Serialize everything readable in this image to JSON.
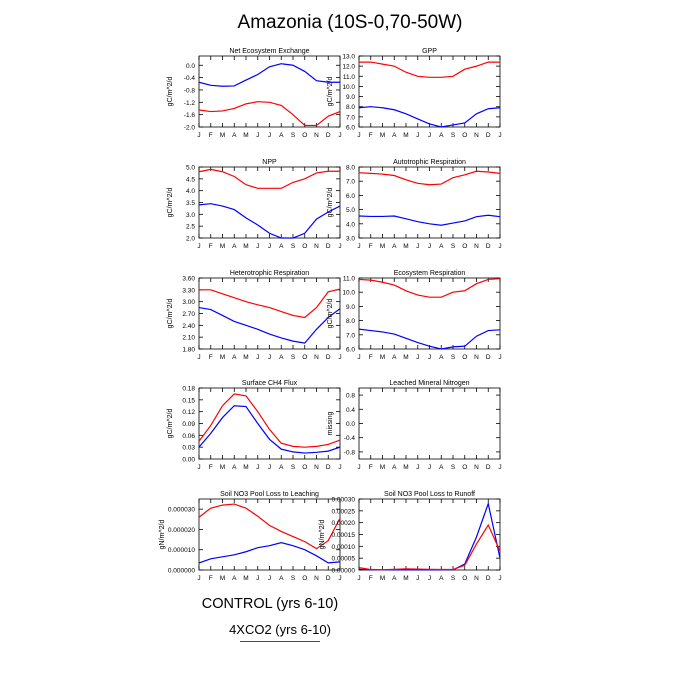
{
  "title": "Amazonia (10S-0,70-50W)",
  "legend": {
    "control_label": "CONTROL (yrs 6-10)",
    "co2_label": "4XCO2 (yrs 6-10)",
    "control_color": "#0000ff",
    "co2_color": "#ff0000"
  },
  "months": [
    "J",
    "F",
    "M",
    "A",
    "M",
    "J",
    "J",
    "A",
    "S",
    "O",
    "N",
    "D",
    "J"
  ],
  "chart_data": [
    {
      "type": "line",
      "title": "Net Ecosystem Exchange",
      "ylabel": "gC/m^2/d",
      "ylim": [
        -2.0,
        0.3
      ],
      "yticks": [
        "0.0",
        "-0.4",
        "-0.8",
        "-1.2",
        "-1.6",
        "-2.0"
      ],
      "ytick_values": [
        0.0,
        -0.4,
        -0.8,
        -1.2,
        -1.6,
        -2.0
      ],
      "series": [
        {
          "name": "CONTROL (yrs 6-10)",
          "color": "#0000ff",
          "values": [
            -0.55,
            -0.65,
            -0.68,
            -0.67,
            -0.48,
            -0.3,
            -0.05,
            0.05,
            0.0,
            -0.2,
            -0.5,
            -0.55,
            -0.55
          ]
        },
        {
          "name": "4XCO2 (yrs 6-10)",
          "color": "#ff0000",
          "values": [
            -1.45,
            -1.5,
            -1.48,
            -1.4,
            -1.25,
            -1.18,
            -1.2,
            -1.3,
            -1.6,
            -1.95,
            -1.95,
            -1.65,
            -1.5
          ]
        }
      ]
    },
    {
      "type": "line",
      "title": "GPP",
      "ylabel": "gC/m^2/d",
      "ylim": [
        6.0,
        13.0
      ],
      "yticks": [
        "13.0",
        "12.0",
        "11.0",
        "10.0",
        "9.0",
        "8.0",
        "7.0",
        "6.0"
      ],
      "ytick_values": [
        13.0,
        12.0,
        11.0,
        10.0,
        9.0,
        8.0,
        7.0,
        6.0
      ],
      "series": [
        {
          "name": "CONTROL (yrs 6-10)",
          "color": "#0000ff",
          "values": [
            7.9,
            8.0,
            7.9,
            7.7,
            7.3,
            6.8,
            6.3,
            6.0,
            6.2,
            6.4,
            7.3,
            7.8,
            7.9
          ]
        },
        {
          "name": "4XCO2 (yrs 6-10)",
          "color": "#ff0000",
          "values": [
            12.4,
            12.4,
            12.2,
            12.0,
            11.4,
            11.0,
            10.9,
            10.9,
            11.0,
            11.7,
            12.0,
            12.4,
            12.4
          ]
        }
      ]
    },
    {
      "type": "line",
      "title": "NPP",
      "ylabel": "gC/m^2/d",
      "ylim": [
        2.0,
        5.0
      ],
      "yticks": [
        "5.0",
        "4.5",
        "4.0",
        "3.5",
        "3.0",
        "2.5",
        "2.0"
      ],
      "ytick_values": [
        5.0,
        4.5,
        4.0,
        3.5,
        3.0,
        2.5,
        2.0
      ],
      "series": [
        {
          "name": "CONTROL (yrs 6-10)",
          "color": "#0000ff",
          "values": [
            3.4,
            3.45,
            3.35,
            3.2,
            2.85,
            2.55,
            2.2,
            2.0,
            2.0,
            2.2,
            2.8,
            3.1,
            3.35
          ]
        },
        {
          "name": "4XCO2 (yrs 6-10)",
          "color": "#ff0000",
          "values": [
            4.8,
            4.9,
            4.8,
            4.6,
            4.25,
            4.1,
            4.1,
            4.1,
            4.35,
            4.5,
            4.75,
            4.82,
            4.82
          ]
        }
      ]
    },
    {
      "type": "line",
      "title": "Autotrophic Respiration",
      "ylabel": "gC/m^2/d",
      "ylim": [
        3.0,
        8.0
      ],
      "yticks": [
        "8.0",
        "7.0",
        "6.0",
        "5.0",
        "4.0",
        "3.0"
      ],
      "ytick_values": [
        8.0,
        7.0,
        6.0,
        5.0,
        4.0,
        3.0
      ],
      "series": [
        {
          "name": "CONTROL (yrs 6-10)",
          "color": "#0000ff",
          "values": [
            4.55,
            4.52,
            4.52,
            4.55,
            4.35,
            4.15,
            4.0,
            3.9,
            4.05,
            4.2,
            4.5,
            4.6,
            4.5
          ]
        },
        {
          "name": "4XCO2 (yrs 6-10)",
          "color": "#ff0000",
          "values": [
            7.6,
            7.55,
            7.5,
            7.4,
            7.1,
            6.85,
            6.75,
            6.8,
            7.25,
            7.45,
            7.7,
            7.65,
            7.55
          ]
        }
      ]
    },
    {
      "type": "line",
      "title": "Heterotrophic Respiration",
      "ylabel": "gC/m^2/d",
      "ylim": [
        1.8,
        3.6
      ],
      "yticks": [
        "3.60",
        "3.30",
        "3.00",
        "2.70",
        "2.40",
        "2.10",
        "1.80"
      ],
      "ytick_values": [
        3.6,
        3.3,
        3.0,
        2.7,
        2.4,
        2.1,
        1.8
      ],
      "series": [
        {
          "name": "CONTROL (yrs 6-10)",
          "color": "#0000ff",
          "values": [
            2.85,
            2.8,
            2.65,
            2.5,
            2.4,
            2.3,
            2.18,
            2.08,
            2.0,
            1.95,
            2.3,
            2.6,
            2.82
          ]
        },
        {
          "name": "4XCO2 (yrs 6-10)",
          "color": "#ff0000",
          "values": [
            3.3,
            3.3,
            3.2,
            3.1,
            3.0,
            2.92,
            2.85,
            2.75,
            2.65,
            2.6,
            2.85,
            3.25,
            3.32
          ]
        }
      ]
    },
    {
      "type": "line",
      "title": "Ecosystem Respiration",
      "ylabel": "gC/m^2/d",
      "ylim": [
        6.0,
        11.0
      ],
      "yticks": [
        "11.0",
        "10.0",
        "9.0",
        "8.0",
        "7.0",
        "6.0"
      ],
      "ytick_values": [
        11.0,
        10.0,
        9.0,
        8.0,
        7.0,
        6.0
      ],
      "series": [
        {
          "name": "CONTROL (yrs 6-10)",
          "color": "#0000ff",
          "values": [
            7.4,
            7.3,
            7.2,
            7.05,
            6.75,
            6.45,
            6.2,
            6.0,
            6.15,
            6.2,
            6.9,
            7.3,
            7.35
          ]
        },
        {
          "name": "4XCO2 (yrs 6-10)",
          "color": "#ff0000",
          "values": [
            10.9,
            10.85,
            10.7,
            10.5,
            10.1,
            9.8,
            9.65,
            9.65,
            10.0,
            10.1,
            10.6,
            10.9,
            10.95
          ]
        }
      ]
    },
    {
      "type": "line",
      "title": "Surface CH4 Flux",
      "ylabel": "gC/m^2/d",
      "ylim": [
        0.0,
        0.18
      ],
      "yticks": [
        "0.18",
        "0.15",
        "0.12",
        "0.09",
        "0.06",
        "0.03",
        "0.00"
      ],
      "ytick_values": [
        0.18,
        0.15,
        0.12,
        0.09,
        0.06,
        0.03,
        0.0
      ],
      "series": [
        {
          "name": "CONTROL (yrs 6-10)",
          "color": "#0000ff",
          "values": [
            0.03,
            0.065,
            0.105,
            0.135,
            0.133,
            0.09,
            0.05,
            0.025,
            0.018,
            0.015,
            0.017,
            0.02,
            0.03
          ]
        },
        {
          "name": "4XCO2 (yrs 6-10)",
          "color": "#ff0000",
          "values": [
            0.045,
            0.085,
            0.135,
            0.165,
            0.16,
            0.12,
            0.075,
            0.04,
            0.032,
            0.03,
            0.032,
            0.037,
            0.048
          ]
        }
      ]
    },
    {
      "type": "line",
      "title": "Leached Mineral Nitrogen",
      "ylabel": "missing",
      "ylim": [
        -1.0,
        1.0
      ],
      "yticks": [
        "0.8",
        "0.4",
        "0.0",
        "-0.4",
        "-0.8"
      ],
      "ytick_values": [
        0.8,
        0.4,
        0.0,
        -0.4,
        -0.8
      ],
      "series": []
    },
    {
      "type": "line",
      "title": "Soil NO3 Pool Loss to Leaching",
      "ylabel": "gN/m^2/d",
      "ylim": [
        0.0,
        3.5e-05
      ],
      "yticks": [
        "0.000030",
        "0.000020",
        "0.000010",
        "0.000000"
      ],
      "ytick_values": [
        3e-05,
        2e-05,
        1e-05,
        0.0
      ],
      "series": [
        {
          "name": "CONTROL (yrs 6-10)",
          "color": "#0000ff",
          "values": [
            3.5e-06,
            5.5e-06,
            6.5e-06,
            7.5e-06,
            9e-06,
            1.1e-05,
            1.2e-05,
            1.35e-05,
            1.2e-05,
            1e-05,
            7e-06,
            3.5e-06,
            4e-06
          ]
        },
        {
          "name": "4XCO2 (yrs 6-10)",
          "color": "#ff0000",
          "values": [
            2.6e-05,
            3.05e-05,
            3.2e-05,
            3.25e-05,
            3.05e-05,
            2.65e-05,
            2.2e-05,
            1.9e-05,
            1.65e-05,
            1.4e-05,
            1.05e-05,
            1.45e-05,
            2.55e-05
          ]
        }
      ]
    },
    {
      "type": "line",
      "title": "Soil NO3 Pool Loss to Runoff",
      "ylabel": "gN/m^2/d",
      "ylim": [
        0.0,
        0.0003
      ],
      "yticks": [
        "0.00030",
        "0.00025",
        "0.00020",
        "0.00015",
        "0.00010",
        "0.00005",
        "0.00000"
      ],
      "ytick_values": [
        0.0003,
        0.00025,
        0.0002,
        0.00015,
        0.0001,
        5e-05,
        0.0
      ],
      "series": [
        {
          "name": "CONTROL (yrs 6-10)",
          "color": "#0000ff",
          "values": [
            3e-06,
            5e-07,
            3e-07,
            2e-07,
            2e-07,
            2e-07,
            2e-07,
            2e-07,
            5e-07,
            2.5e-05,
            0.00014,
            0.00028,
            5e-05
          ]
        },
        {
          "name": "4XCO2 (yrs 6-10)",
          "color": "#ff0000",
          "values": [
            1e-05,
            2e-06,
            1e-06,
            3e-06,
            5e-06,
            4e-06,
            3e-06,
            2e-06,
            2e-06,
            2e-05,
            0.00011,
            0.00019,
            8e-05
          ]
        }
      ]
    }
  ]
}
